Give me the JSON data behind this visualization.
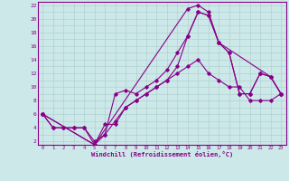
{
  "xlabel": "Windchill (Refroidissement éolien,°C)",
  "bg_color": "#cce8e8",
  "line_color": "#880088",
  "grid_color": "#aacccc",
  "xlim": [
    -0.5,
    23.5
  ],
  "ylim": [
    1.5,
    22.5
  ],
  "xticks": [
    0,
    1,
    2,
    3,
    4,
    5,
    6,
    7,
    8,
    9,
    10,
    11,
    12,
    13,
    14,
    15,
    16,
    17,
    18,
    19,
    20,
    21,
    22,
    23
  ],
  "yticks": [
    2,
    4,
    6,
    8,
    10,
    12,
    14,
    16,
    18,
    20,
    22
  ],
  "line1_x": [
    0,
    1,
    2,
    3,
    4,
    5,
    6,
    7,
    8,
    9,
    10,
    11,
    12,
    13,
    14,
    15,
    16,
    17,
    18,
    19,
    20,
    21,
    22,
    23
  ],
  "line1_y": [
    6,
    4,
    4,
    4,
    4,
    1.5,
    4.5,
    4.5,
    7,
    8,
    9,
    10,
    11,
    12,
    13,
    14,
    12,
    11,
    10,
    10,
    8,
    8,
    8,
    9
  ],
  "line2_x": [
    0,
    1,
    2,
    3,
    4,
    5,
    6,
    7,
    8,
    9,
    10,
    11,
    12,
    13,
    14,
    15,
    16,
    17,
    18,
    19,
    20,
    21,
    22,
    23
  ],
  "line2_y": [
    6,
    4,
    4,
    4,
    4,
    2,
    3,
    5,
    7,
    8,
    9,
    10,
    11,
    13,
    17.5,
    21,
    20.5,
    16.5,
    15,
    9,
    9,
    12,
    11.5,
    9
  ],
  "line3_x": [
    0,
    5,
    6,
    7,
    8,
    9,
    10,
    11,
    12,
    13,
    14,
    15,
    16,
    17,
    18,
    19,
    20,
    21,
    22,
    23
  ],
  "line3_y": [
    6,
    1.5,
    3,
    9,
    9.5,
    9,
    10,
    11,
    12.5,
    15,
    17.5,
    21,
    20.5,
    16.5,
    15,
    9,
    9,
    12,
    11.5,
    9
  ],
  "line4_x": [
    0,
    5,
    14,
    15,
    16,
    17,
    22,
    23
  ],
  "line4_y": [
    6,
    1.5,
    21.5,
    22,
    21,
    16.5,
    11.5,
    9
  ]
}
